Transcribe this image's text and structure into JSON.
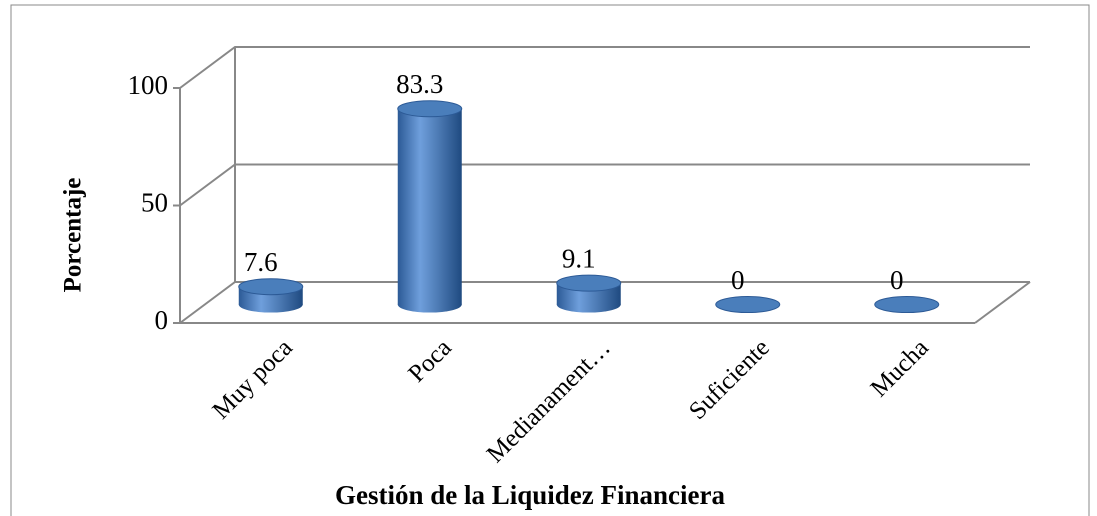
{
  "chart_data": {
    "type": "bar3d",
    "categories": [
      "Muy poca",
      "Poca",
      "Medianament…",
      "Suficiente",
      "Mucha"
    ],
    "values": [
      7.6,
      83.3,
      9.1,
      0,
      0
    ],
    "color": "#4a7ebb",
    "ylim": [
      0,
      100
    ],
    "yticks": [
      0,
      50,
      100
    ],
    "grid": true,
    "xlabel": "Gestión de la Liquidez Financiera",
    "ylabel": "Porcentaje"
  }
}
